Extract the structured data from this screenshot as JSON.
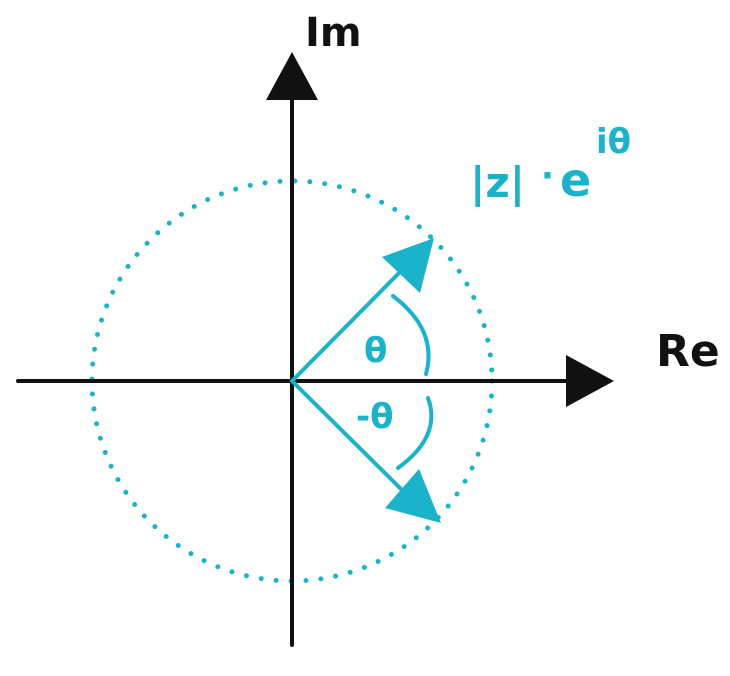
{
  "colors": {
    "ink": "#111111",
    "accent": "#1ab3c9",
    "background": "#ffffff"
  },
  "axes": {
    "real_label": "Re",
    "imaginary_label": "Im"
  },
  "formula": {
    "modulus": "|z|",
    "dot": "·",
    "base": "e",
    "exponent": "iθ"
  },
  "angles": {
    "positive": "θ",
    "negative": "-θ"
  }
}
